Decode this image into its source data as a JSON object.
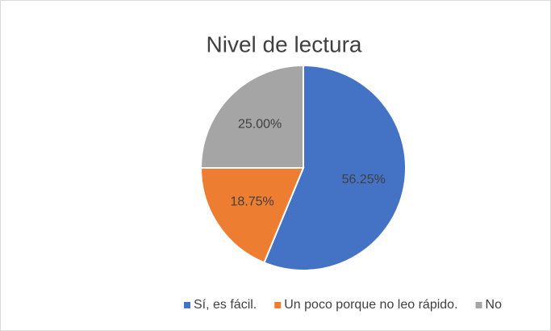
{
  "chart_data": {
    "type": "pie",
    "title": "Nivel de lectura",
    "categories": [
      "Sí, es fácil.",
      "Un poco porque no leo rápido.",
      "No"
    ],
    "values": [
      56.25,
      18.75,
      25
    ],
    "value_labels": [
      "56.25%",
      "18.75%",
      "25.00%"
    ],
    "colors": [
      "#4472c4",
      "#ed7d31",
      "#a5a5a5"
    ],
    "legend": "bottom"
  }
}
